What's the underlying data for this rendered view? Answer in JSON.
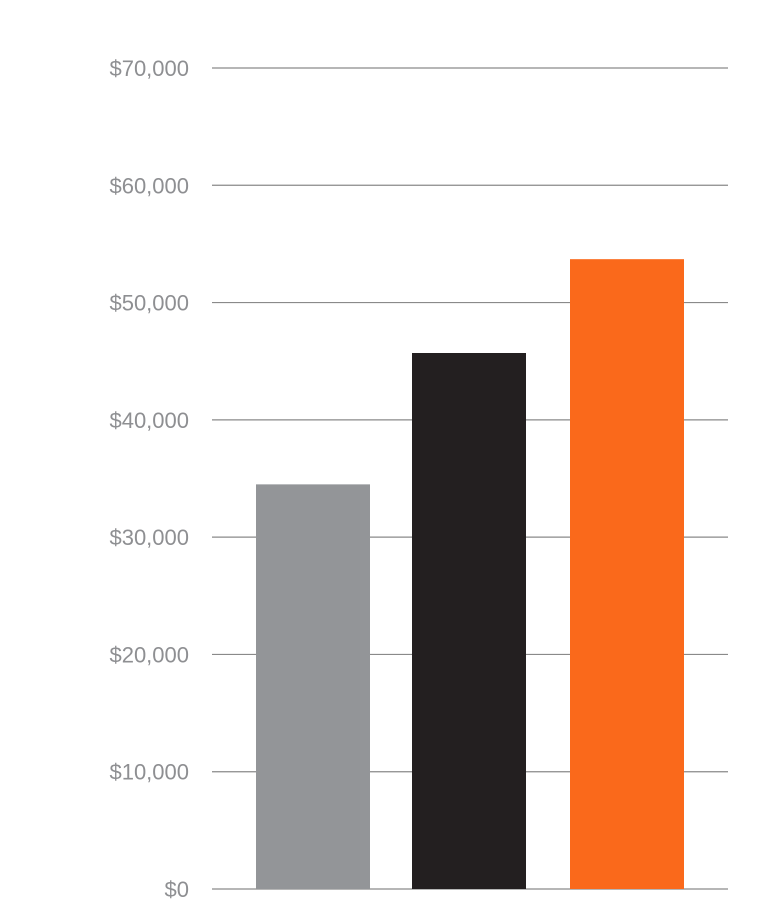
{
  "chart_data": {
    "type": "bar",
    "title": "",
    "xlabel": "",
    "ylabel": "",
    "categories": [
      "",
      "",
      ""
    ],
    "values": [
      34500,
      45700,
      53700
    ],
    "bar_colors": [
      "#939598",
      "#231f20",
      "#fa691b"
    ],
    "ylim": [
      0,
      70000
    ],
    "y_ticks": [
      0,
      10000,
      20000,
      30000,
      40000,
      50000,
      60000,
      70000
    ],
    "y_tick_labels": [
      "$0",
      "$10,000",
      "$20,000",
      "$30,000",
      "$40,000",
      "$50,000",
      "$60,000",
      "$70,000"
    ],
    "grid": true,
    "gridline_color": "#8a8a8a",
    "tick_label_color": "#8e8f92",
    "legend": false
  }
}
